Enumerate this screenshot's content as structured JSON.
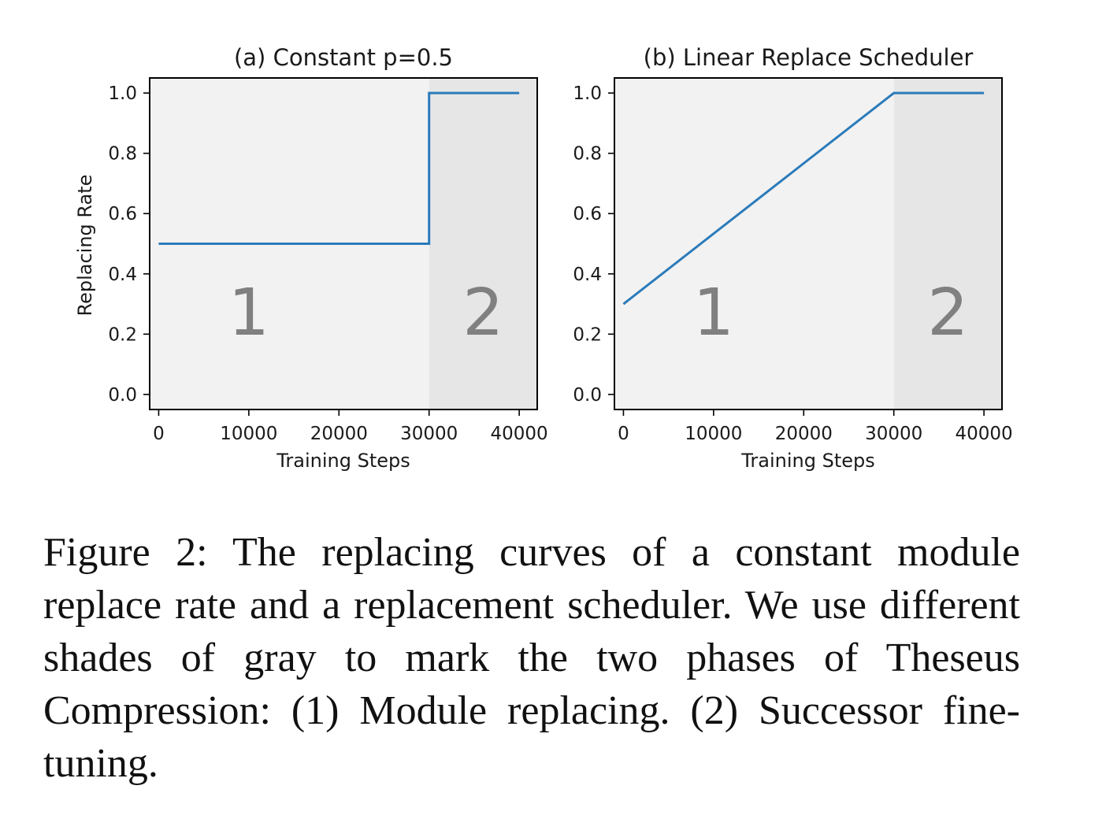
{
  "chart_data": [
    {
      "type": "line",
      "title": "(a) Constant p=0.5",
      "xlabel": "Training Steps",
      "ylabel": "Replacing Rate",
      "xlim": [
        -1000,
        42000
      ],
      "ylim": [
        -0.05,
        1.05
      ],
      "x_ticks": [
        0,
        10000,
        20000,
        30000,
        40000
      ],
      "y_ticks": [
        "0.0",
        "0.2",
        "0.4",
        "0.6",
        "0.8",
        "1.0"
      ],
      "phases": [
        {
          "label": "1",
          "x_range": [
            -1000,
            30000
          ],
          "color": "#f2f2f2"
        },
        {
          "label": "2",
          "x_range": [
            30000,
            42000
          ],
          "color": "#e6e6e6"
        }
      ],
      "series": [
        {
          "color": "#2b7bba",
          "x": [
            0,
            30000,
            30000,
            40000
          ],
          "y": [
            0.5,
            0.5,
            1.0,
            1.0
          ]
        }
      ]
    },
    {
      "type": "line",
      "title": "(b) Linear Replace Scheduler",
      "xlabel": "Training Steps",
      "ylabel": "",
      "xlim": [
        -1000,
        42000
      ],
      "ylim": [
        -0.05,
        1.05
      ],
      "x_ticks": [
        0,
        10000,
        20000,
        30000,
        40000
      ],
      "y_ticks": [
        "0.0",
        "0.2",
        "0.4",
        "0.6",
        "0.8",
        "1.0"
      ],
      "phases": [
        {
          "label": "1",
          "x_range": [
            -1000,
            30000
          ],
          "color": "#f2f2f2"
        },
        {
          "label": "2",
          "x_range": [
            30000,
            42000
          ],
          "color": "#e6e6e6"
        }
      ],
      "series": [
        {
          "color": "#2b7bba",
          "x": [
            0,
            30000,
            40000
          ],
          "y": [
            0.3,
            1.0,
            1.0
          ]
        }
      ]
    }
  ],
  "caption": "Figure 2: The replacing curves of a constant module replace rate and a replacement scheduler. We use different shades of gray to mark the two phases of Theseus Compression: (1) Module replacing. (2) Successor fine-tuning."
}
